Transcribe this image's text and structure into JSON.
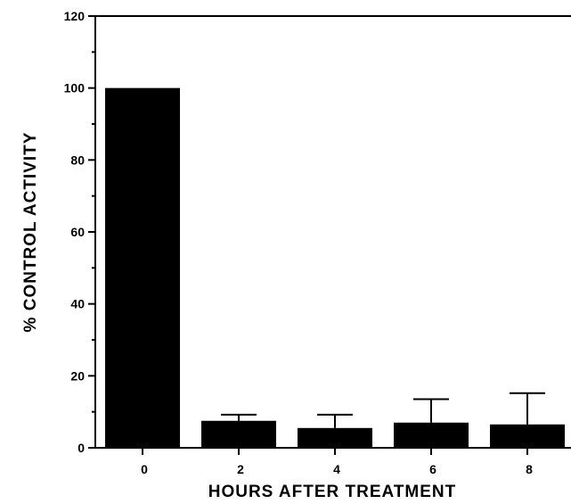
{
  "chart_data": {
    "type": "bar",
    "title": "",
    "xlabel": "HOURS AFTER TREATMENT",
    "ylabel": "% CONTROL ACTIVITY",
    "categories": [
      "0",
      "2",
      "4",
      "6",
      "8"
    ],
    "values": [
      100,
      7.5,
      5.5,
      7,
      6.5
    ],
    "error_upper": [
      null,
      9.2,
      9.2,
      13.5,
      15.2
    ],
    "ylim": [
      0,
      120
    ],
    "yticks": [
      "0",
      "20",
      "40",
      "60",
      "80",
      "100",
      "120"
    ],
    "grid": false,
    "bar_color": "#000000"
  }
}
